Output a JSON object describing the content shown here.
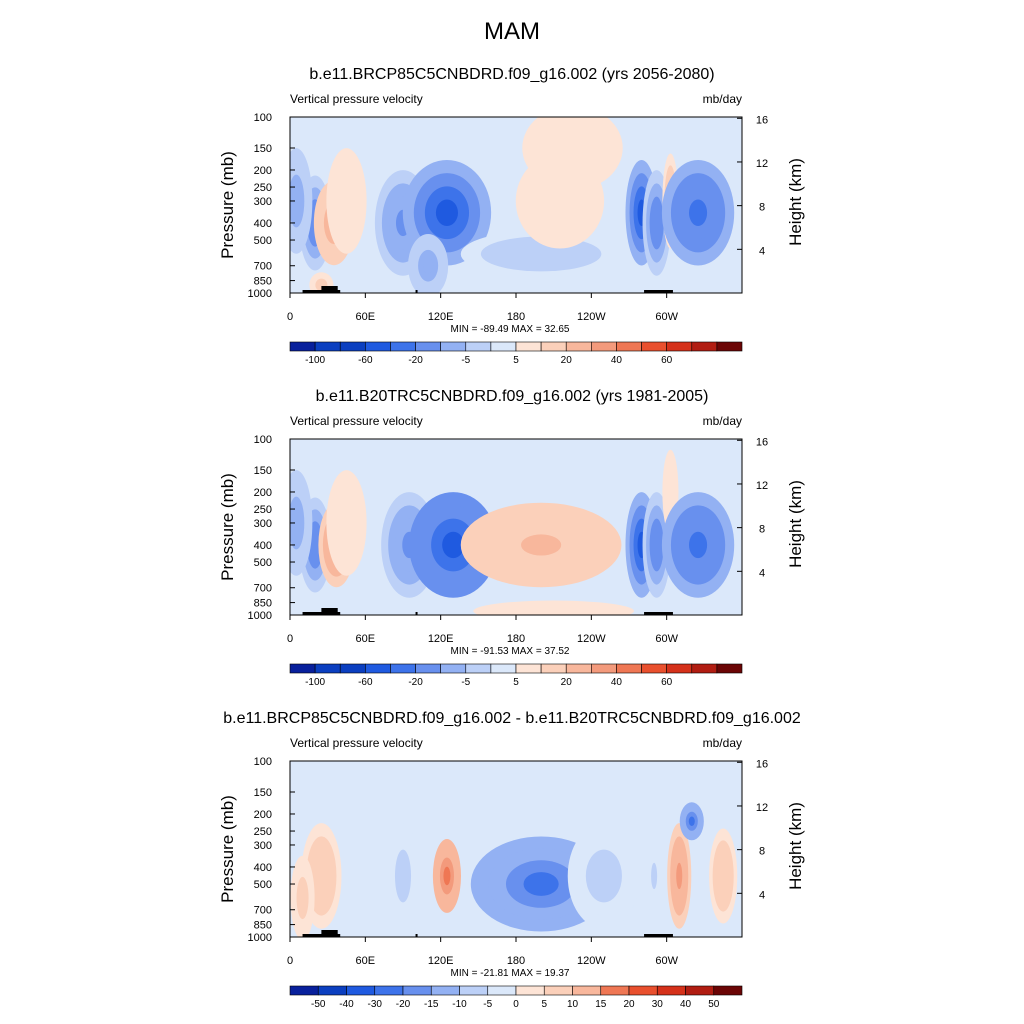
{
  "page": {
    "title": "MAM"
  },
  "colors": {
    "levels_blue": [
      "#08209c",
      "#0b3fc0",
      "#1f5ae0",
      "#3d73ea",
      "#6890ee",
      "#93b1f3",
      "#bcd0f7",
      "#dbe8fa"
    ],
    "levels_red": [
      "#fde4d6",
      "#fbd0ba",
      "#f8b79c",
      "#f39a7c",
      "#ef7754",
      "#e9502e",
      "#d5311a",
      "#b11d12",
      "#8a0e0a",
      "#6b0505"
    ]
  },
  "chart_data": [
    {
      "type": "heatmap",
      "title": "b.e11.BRCP85C5CNBDRD.f09_g16.002 (yrs 2056-2080)",
      "field": "Vertical pressure velocity",
      "units": "mb/day",
      "ylabel": "Pressure (mb)",
      "ylabel_right": "Height (km)",
      "x_ticks": [
        "0",
        "60E",
        "120E",
        "180",
        "120W",
        "60W"
      ],
      "y_ticks": [
        "100",
        "150",
        "200",
        "250",
        "300",
        "400",
        "500",
        "700",
        "850",
        "1000"
      ],
      "y_ticks_right": [
        "16",
        "12",
        "8",
        "4"
      ],
      "stats": "MIN = -89.49  MAX =  32.65",
      "colorbar_labels": [
        "-100",
        "-60",
        "-20",
        "-5",
        "5",
        "20",
        "40",
        "60"
      ],
      "features": [
        {
          "lon": 20,
          "p": 400,
          "value": -45,
          "w": 8,
          "h": 0.45
        },
        {
          "lon": 5,
          "p": 300,
          "value": -35,
          "w": 8,
          "h": 0.5
        },
        {
          "lon": 35,
          "p": 400,
          "value": 28,
          "w": 10,
          "h": 0.4
        },
        {
          "lon": 45,
          "p": 300,
          "value": 8,
          "w": 10,
          "h": 0.5
        },
        {
          "lon": 25,
          "p": 900,
          "value": 12,
          "w": 6,
          "h": 0.12
        },
        {
          "lon": 90,
          "p": 400,
          "value": -40,
          "w": 14,
          "h": 0.5
        },
        {
          "lon": 125,
          "p": 350,
          "value": -65,
          "w": 22,
          "h": 0.5
        },
        {
          "lon": 110,
          "p": 700,
          "value": -35,
          "w": 10,
          "h": 0.3
        },
        {
          "lon": 200,
          "p": 600,
          "value": -20,
          "w": 40,
          "h": 0.22
        },
        {
          "lon": 215,
          "p": 300,
          "value": 8,
          "w": 22,
          "h": 0.45
        },
        {
          "lon": 225,
          "p": 150,
          "value": 6,
          "w": 25,
          "h": 0.4
        },
        {
          "lon": 280,
          "p": 350,
          "value": -60,
          "w": 8,
          "h": 0.5
        },
        {
          "lon": 292,
          "p": 400,
          "value": -45,
          "w": 7,
          "h": 0.5
        },
        {
          "lon": 303,
          "p": 300,
          "value": 18,
          "w": 4,
          "h": 0.45
        },
        {
          "lon": 325,
          "p": 350,
          "value": -55,
          "w": 18,
          "h": 0.5
        }
      ]
    },
    {
      "type": "heatmap",
      "title": "b.e11.B20TRC5CNBDRD.f09_g16.002 (yrs 1981-2005)",
      "field": "Vertical pressure velocity",
      "units": "mb/day",
      "ylabel": "Pressure (mb)",
      "ylabel_right": "Height (km)",
      "x_ticks": [
        "0",
        "60E",
        "120E",
        "180",
        "120W",
        "60W"
      ],
      "y_ticks": [
        "100",
        "150",
        "200",
        "250",
        "300",
        "400",
        "500",
        "700",
        "850",
        "1000"
      ],
      "y_ticks_right": [
        "16",
        "12",
        "8",
        "4"
      ],
      "stats": "MIN = -91.53  MAX =  37.52",
      "colorbar_labels": [
        "-100",
        "-60",
        "-20",
        "-5",
        "5",
        "20",
        "40",
        "60"
      ],
      "features": [
        {
          "lon": 20,
          "p": 400,
          "value": -45,
          "w": 8,
          "h": 0.45
        },
        {
          "lon": 5,
          "p": 300,
          "value": -35,
          "w": 8,
          "h": 0.5
        },
        {
          "lon": 37,
          "p": 400,
          "value": 32,
          "w": 9,
          "h": 0.4
        },
        {
          "lon": 45,
          "p": 300,
          "value": 8,
          "w": 10,
          "h": 0.5
        },
        {
          "lon": 95,
          "p": 400,
          "value": -40,
          "w": 14,
          "h": 0.5
        },
        {
          "lon": 130,
          "p": 400,
          "value": -70,
          "w": 22,
          "h": 0.5
        },
        {
          "lon": 200,
          "p": 400,
          "value": 22,
          "w": 40,
          "h": 0.4
        },
        {
          "lon": 210,
          "p": 950,
          "value": 8,
          "w": 40,
          "h": 0.1
        },
        {
          "lon": 280,
          "p": 400,
          "value": -60,
          "w": 8,
          "h": 0.5
        },
        {
          "lon": 292,
          "p": 400,
          "value": -45,
          "w": 7,
          "h": 0.5
        },
        {
          "lon": 303,
          "p": 200,
          "value": 6,
          "w": 4,
          "h": 0.4
        },
        {
          "lon": 325,
          "p": 400,
          "value": -55,
          "w": 18,
          "h": 0.5
        }
      ]
    },
    {
      "type": "heatmap",
      "title": "b.e11.BRCP85C5CNBDRD.f09_g16.002 - b.e11.B20TRC5CNBDRD.f09_g16.002",
      "field": "Vertical pressure velocity",
      "units": "mb/day",
      "ylabel": "Pressure (mb)",
      "ylabel_right": "Height (km)",
      "x_ticks": [
        "0",
        "60E",
        "120E",
        "180",
        "120W",
        "60W"
      ],
      "y_ticks": [
        "100",
        "150",
        "200",
        "250",
        "300",
        "400",
        "500",
        "700",
        "850",
        "1000"
      ],
      "y_ticks_right": [
        "16",
        "12",
        "8",
        "4"
      ],
      "stats": "MIN = -21.81  MAX =  19.37",
      "colorbar_labels": [
        "-50",
        "-40",
        "-30",
        "-20",
        "-15",
        "-10",
        "-5",
        "0",
        "5",
        "10",
        "15",
        "20",
        "30",
        "40",
        "50"
      ],
      "features": [
        {
          "lon": 25,
          "p": 450,
          "value": 4,
          "w": 10,
          "h": 0.5
        },
        {
          "lon": 10,
          "p": 600,
          "value": 3,
          "w": 6,
          "h": 0.4
        },
        {
          "lon": 90,
          "p": 450,
          "value": -4,
          "w": 8,
          "h": 0.5
        },
        {
          "lon": 125,
          "p": 450,
          "value": 9,
          "w": 7,
          "h": 0.35
        },
        {
          "lon": 200,
          "p": 500,
          "value": -12,
          "w": 35,
          "h": 0.45
        },
        {
          "lon": 250,
          "p": 450,
          "value": -4,
          "w": 18,
          "h": 0.5
        },
        {
          "lon": 310,
          "p": 450,
          "value": 7,
          "w": 6,
          "h": 0.5
        },
        {
          "lon": 320,
          "p": 220,
          "value": -12,
          "w": 6,
          "h": 0.18
        },
        {
          "lon": 345,
          "p": 450,
          "value": 4,
          "w": 7,
          "h": 0.45
        },
        {
          "lon": 290,
          "p": 450,
          "value": -3,
          "w": 6,
          "h": 0.5
        }
      ]
    }
  ]
}
